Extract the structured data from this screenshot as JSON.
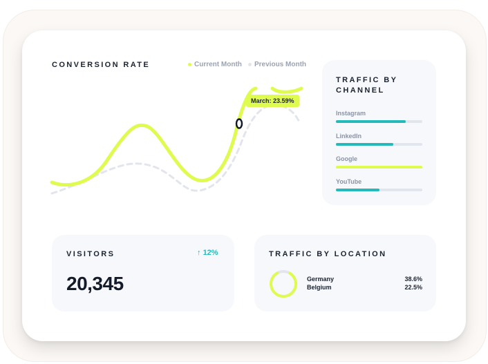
{
  "conversion": {
    "title": "CONVERSION RATE",
    "legend_current": "Current Month",
    "legend_previous": "Previous Month",
    "tooltip": "March: 23.59%",
    "current_color": "#dffb4f",
    "previous_color": "#e2e5ec"
  },
  "channel": {
    "title_line1": "TRAFFIC BY",
    "title_line2": "CHANNEL",
    "items": [
      {
        "label": "Instagram",
        "value": 0.81,
        "color": "#25b9ba"
      },
      {
        "label": "LinkedIn",
        "value": 0.66,
        "color": "#25b9ba"
      },
      {
        "label": "Google",
        "value": 1.0,
        "color": "#dffb4f"
      },
      {
        "label": "YouTube",
        "value": 0.5,
        "color": "#25b9ba"
      }
    ]
  },
  "visitors": {
    "title": "VISITORS",
    "count": "20,345",
    "change": "12%"
  },
  "location": {
    "title": "TRAFFIC BY LOCATION",
    "items": [
      {
        "country": "Germany",
        "percent": "38.6%"
      },
      {
        "country": "Belgium",
        "percent": "22.5%"
      }
    ]
  }
}
